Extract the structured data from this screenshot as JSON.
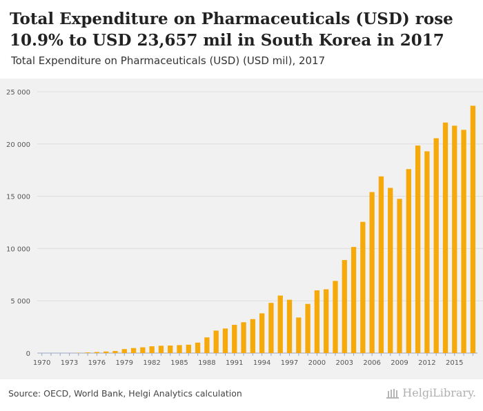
{
  "header": {
    "title": "Total Expenditure on Pharmaceuticals (USD) rose 10.9% to USD 23,657 mil in South Korea in 2017",
    "subtitle": "Total Expenditure on Pharmaceuticals (USD) (USD mil), 2017"
  },
  "footer": {
    "source": "Source: OECD, World Bank, Helgi Analytics calculation",
    "logo_text": "HelgiLibrary."
  },
  "colors": {
    "bar": "#F5A90A",
    "grid": "#dedede",
    "background": "#f1f1f1",
    "axis": "#9aa6c8"
  },
  "chart_data": {
    "type": "bar",
    "categories": [
      "1970",
      "1971",
      "1972",
      "1973",
      "1974",
      "1975",
      "1976",
      "1977",
      "1978",
      "1979",
      "1980",
      "1981",
      "1982",
      "1983",
      "1984",
      "1985",
      "1986",
      "1987",
      "1988",
      "1989",
      "1990",
      "1991",
      "1992",
      "1993",
      "1994",
      "1995",
      "1996",
      "1997",
      "1998",
      "1999",
      "2000",
      "2001",
      "2002",
      "2003",
      "2004",
      "2005",
      "2006",
      "2007",
      "2008",
      "2009",
      "2010",
      "2011",
      "2012",
      "2013",
      "2014",
      "2015",
      "2016",
      "2017"
    ],
    "x_tick_labels": [
      "1970",
      "1973",
      "1976",
      "1979",
      "1982",
      "1985",
      "1988",
      "1991",
      "1994",
      "1997",
      "2000",
      "2003",
      "2006",
      "2009",
      "2012",
      "2015"
    ],
    "values": [
      0,
      0,
      0,
      0,
      20,
      60,
      100,
      150,
      200,
      380,
      480,
      550,
      650,
      700,
      720,
      760,
      800,
      1000,
      1500,
      2150,
      2350,
      2700,
      2950,
      3250,
      3800,
      4800,
      5500,
      5100,
      3400,
      4700,
      6000,
      6100,
      6900,
      8900,
      10150,
      12550,
      15400,
      16900,
      15800,
      14750,
      17600,
      19850,
      19300,
      20550,
      22050,
      21750,
      21350,
      23657
    ],
    "ylim": [
      0,
      25000
    ],
    "y_ticks": [
      0,
      5000,
      10000,
      15000,
      20000,
      25000
    ],
    "y_tick_labels": [
      "0",
      "5 000",
      "10 000",
      "15 000",
      "20 000",
      "25 000"
    ],
    "xlabel": "",
    "ylabel": "",
    "grid": true
  }
}
